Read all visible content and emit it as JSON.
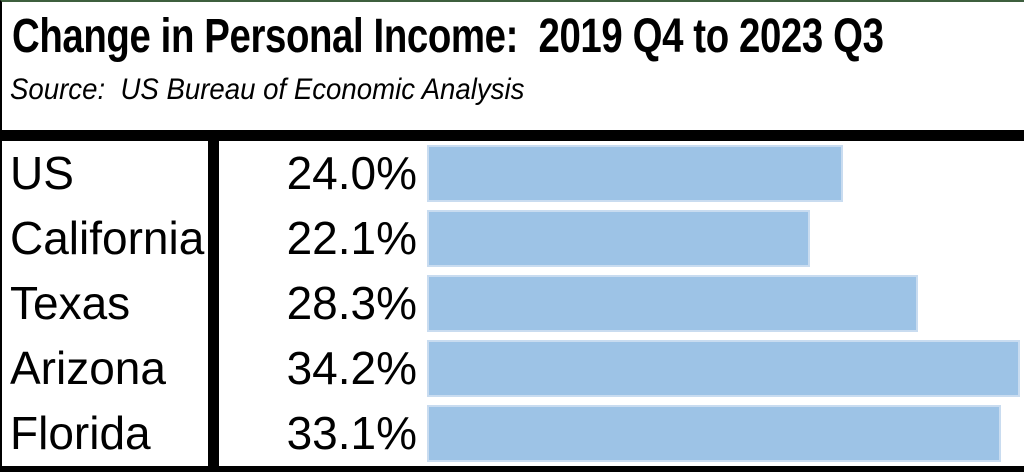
{
  "header": {
    "title": "Change in Personal Income:  2019 Q4 to 2023 Q3",
    "source": "Source:  US Bureau of Economic Analysis"
  },
  "chart_data": {
    "type": "bar",
    "orientation": "horizontal",
    "title": "Change in Personal Income:  2019 Q4 to 2023 Q3",
    "source": "Source:  US Bureau of Economic Analysis",
    "categories": [
      "US",
      "California",
      "Texas",
      "Arizona",
      "Florida"
    ],
    "values": [
      24.0,
      22.1,
      28.3,
      34.2,
      33.1
    ],
    "value_labels": [
      "24.0%",
      "22.1%",
      "28.3%",
      "34.2%",
      "33.1%"
    ],
    "xlabel": "",
    "ylabel": "",
    "xlim": [
      0,
      34.2
    ],
    "grid": false,
    "legend": false,
    "bar_color": "#9DC3E6",
    "bar_border_color": "#C9DCF0",
    "frame_top_line_color": "#3E5F3E",
    "frame_line_color": "#000000"
  }
}
